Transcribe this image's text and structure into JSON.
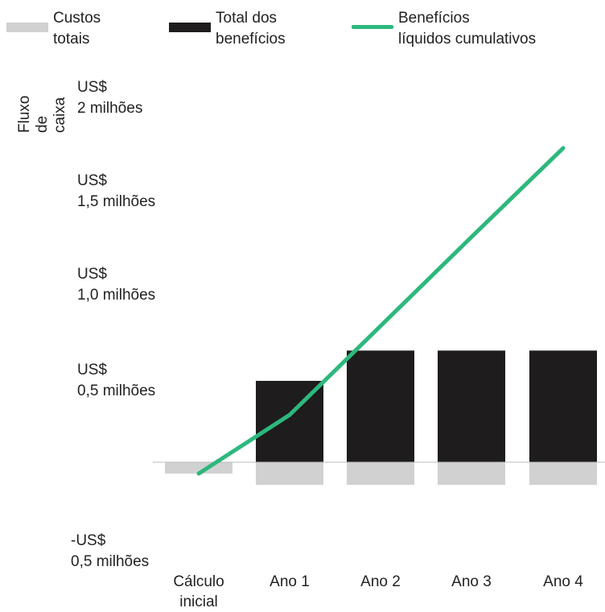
{
  "legend": {
    "costs": "Custos\ntotais",
    "benefits": "Total dos\nbenefícios",
    "net": "Benefícios\nlíquidos cumulativos"
  },
  "ylabel": "Fluxo de\ncaixa",
  "yticks": [
    "US$\n2 milhões",
    "US$\n1,5 milhões",
    "US$\n1,0 milhões",
    "US$\n0,5 milhões",
    "-US$\n0,5 milhões"
  ],
  "xticks": [
    "Cálculo\ninicial",
    "Ano 1",
    "Ano 2",
    "Ano 3",
    "Ano 4"
  ],
  "colors": {
    "costs": "#d1d1d1",
    "benefits": "#1e1c1d",
    "net": "#2db87d",
    "axis": "#bbbbbb"
  },
  "chart_data": {
    "type": "bar",
    "categories": [
      "Cálculo inicial",
      "Ano 1",
      "Ano 2",
      "Ano 3",
      "Ano 4"
    ],
    "series": [
      {
        "name": "Custos totais",
        "type": "bar",
        "values": [
          -0.06,
          -0.12,
          -0.12,
          -0.12,
          -0.12
        ]
      },
      {
        "name": "Total dos benefícios",
        "type": "bar",
        "values": [
          0,
          0.43,
          0.59,
          0.59,
          0.59
        ]
      },
      {
        "name": "Benefícios líquidos cumulativos",
        "type": "line",
        "values": [
          -0.06,
          0.25,
          0.72,
          1.19,
          1.66
        ]
      }
    ],
    "ylabel": "Fluxo de caixa",
    "ylim": [
      -0.5,
      2.0
    ],
    "legend_position": "top",
    "grid": false
  }
}
